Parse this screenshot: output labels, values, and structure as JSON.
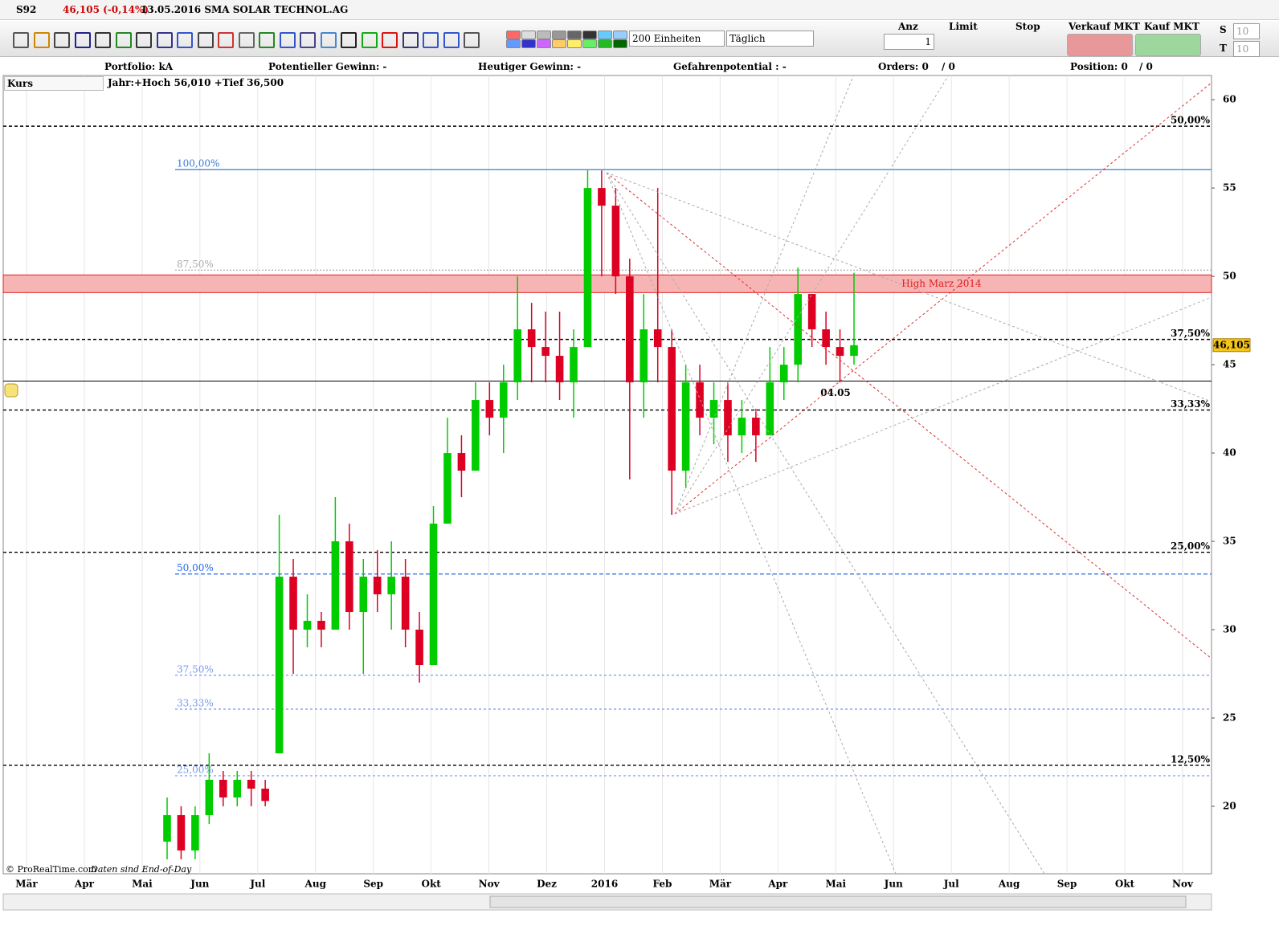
{
  "title_bar": {
    "symbol": "S92",
    "quote": "46,105 (-0,14%)",
    "description": "13.05.2016 SMA SOLAR TECHNOL.AG"
  },
  "toolbar": {
    "units": "200 Einheiten",
    "period": "Täglich",
    "qty_label": "Anz",
    "qty": "1",
    "limit": "Limit",
    "stop": "Stop",
    "sell": "Verkauf MKT",
    "buy": "Kauf MKT",
    "s": "S",
    "t": "T",
    "s_value": "10",
    "t_value": "10"
  },
  "info_bar": {
    "portfolio": "Portfolio: kA",
    "potential": "Potentieller Gewinn: -",
    "today": "Heutiger Gewinn: -",
    "risk": "Gefahrenpotential : -",
    "orders": "Orders: 0",
    "orders_total": "/ 0",
    "position": "Position: 0",
    "position_total": "/ 0"
  },
  "panel": {
    "name": "Kurs",
    "range": "Jahr:+Hoch 56,010 +Tief 36,500"
  },
  "footer": {
    "copyright": "© ProRealTime.com",
    "note": "Daten sind End-of-Day"
  },
  "chart_data": {
    "type": "candlestick",
    "up_color": "#00cc00",
    "down_color": "#dd0022",
    "categories": [
      "Mär",
      "Apr",
      "Mai",
      "Jun",
      "Jul",
      "Aug",
      "Sep",
      "Okt",
      "Nov",
      "Dez",
      "2016",
      "Feb",
      "Mär",
      "Apr",
      "Mai",
      "Jun",
      "Jul",
      "Aug",
      "Sep",
      "Okt",
      "Nov"
    ],
    "open": [
      18,
      19.5,
      17.5,
      19.5,
      21.5,
      20.5,
      21.5,
      21,
      23,
      33,
      30,
      30.5,
      30,
      35,
      31,
      33,
      32,
      33,
      30,
      28,
      36,
      40,
      39,
      43,
      42,
      44,
      47,
      46,
      45.5,
      44,
      46,
      55,
      54,
      50,
      44,
      47,
      46,
      39,
      44,
      42,
      43,
      41,
      42,
      41,
      44,
      45,
      49,
      47,
      46,
      45.5
    ],
    "high": [
      20.5,
      20,
      20,
      23,
      22,
      22,
      22,
      21.5,
      36.5,
      34,
      32,
      31,
      37.5,
      36,
      34,
      34.5,
      35,
      34,
      31,
      37,
      42,
      41,
      44,
      44,
      45,
      50,
      48.5,
      48,
      48,
      47,
      56,
      56,
      55,
      51,
      49,
      55,
      47,
      45,
      45,
      44,
      44,
      43,
      42.5,
      46,
      46,
      50.5,
      49,
      48,
      47,
      50.2
    ],
    "low": [
      17,
      17,
      17,
      19,
      20,
      20,
      20,
      20,
      23,
      27.5,
      29,
      29,
      30,
      30,
      27.5,
      31,
      30,
      29,
      27,
      28,
      36,
      37.5,
      39,
      41,
      40,
      43,
      44,
      44,
      43,
      42,
      46,
      50,
      49,
      38.5,
      42,
      44,
      36.5,
      38,
      41,
      40.5,
      39.5,
      40,
      39.5,
      41,
      43,
      44,
      46,
      45,
      44,
      45
    ],
    "close": [
      19.5,
      17.5,
      19.5,
      21.5,
      20.5,
      21.5,
      21,
      20.3,
      33,
      30,
      30.5,
      30,
      35,
      31,
      33,
      32,
      33,
      30,
      28,
      36,
      40,
      39,
      43,
      42,
      44,
      47,
      46,
      45.5,
      44,
      46,
      55,
      54,
      50,
      44,
      47,
      46,
      39,
      44,
      42,
      43,
      41,
      42,
      41,
      44,
      45,
      49,
      47,
      46,
      45.5,
      46.1
    ],
    "ylim": [
      16.18,
      61.37
    ],
    "yticks": [
      20,
      25,
      30,
      35,
      40,
      45,
      50,
      55,
      60
    ],
    "current_price": {
      "value": 46.105,
      "label": "46,105"
    },
    "zone": {
      "low": 49.08,
      "high": 50.08,
      "label": "High Marz 2014"
    },
    "support": 44.07,
    "annotation": {
      "value": 44.07,
      "label": "04.05"
    },
    "fib_left": [
      {
        "value": 56.04,
        "label": "100,00%",
        "color": "#3a7bd5",
        "dash": "none"
      },
      {
        "value": 50.35,
        "label": "87,50%",
        "color": "#aaaaaa",
        "dash": "2,2"
      },
      {
        "value": 33.15,
        "label": "50,00%",
        "color": "#2266ee",
        "dash": "5,3"
      },
      {
        "value": 27.42,
        "label": "37,50%",
        "color": "#7799ee",
        "dash": "3,3"
      },
      {
        "value": 25.5,
        "label": "33,33%",
        "color": "#7799ee",
        "dash": "3,3"
      },
      {
        "value": 21.73,
        "label": "25,00%",
        "color": "#7799ee",
        "dash": "3,3"
      }
    ],
    "fib_right": [
      {
        "value": 58.5,
        "label": "50,00%",
        "color": "#000000",
        "dash": "4,3"
      },
      {
        "value": 46.43,
        "label": "37,50%",
        "color": "#000000",
        "dash": "4,3"
      },
      {
        "value": 42.43,
        "label": "33,33%",
        "color": "#000000",
        "dash": "4,3"
      },
      {
        "value": 34.38,
        "label": "25,00%",
        "color": "#000000",
        "dash": "4,3"
      },
      {
        "value": 22.32,
        "label": "12,50%",
        "color": "#000000",
        "dash": "4,3"
      }
    ]
  }
}
